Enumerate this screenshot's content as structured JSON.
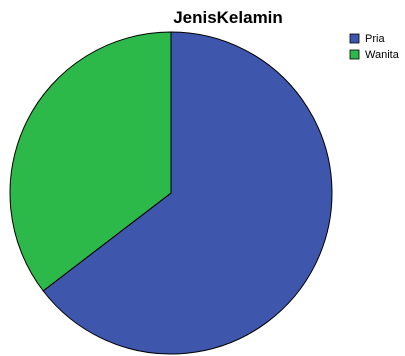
{
  "chart_data": {
    "type": "pie",
    "title": "JenisKelamin",
    "legend": "top-right",
    "slices": [
      {
        "label": "Pria",
        "value": 64.6,
        "color": "#3f56ad"
      },
      {
        "label": "Wanita",
        "value": 35.4,
        "color": "#2db84a"
      }
    ],
    "start_angle_deg": 0,
    "direction": "clockwise"
  }
}
